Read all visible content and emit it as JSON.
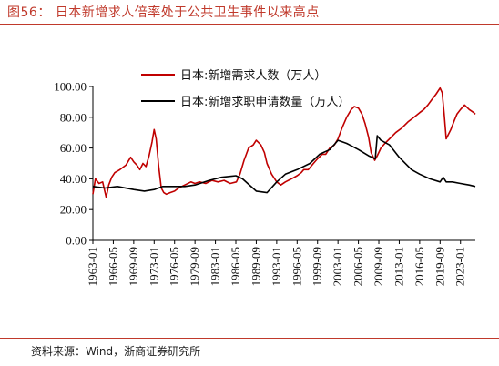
{
  "figure": {
    "title": "图56：  日本新增求人倍率处于公共卫生事件以来高点",
    "source": "资料来源：Wind，浙商证券研究所"
  },
  "colors": {
    "series_red": "#c00000",
    "series_black": "#000000",
    "accent": "#c0392b"
  },
  "chart_data": {
    "type": "line",
    "title": "",
    "xlabel": "",
    "ylabel": "",
    "ylim": [
      0,
      100
    ],
    "y_ticks": [
      "100.00",
      "80.00",
      "60.00",
      "40.00",
      "20.00",
      "0.00"
    ],
    "x_ticks": [
      "1963-01",
      "1966-05",
      "1969-09",
      "1973-01",
      "1976-05",
      "1979-09",
      "1983-01",
      "1986-05",
      "1989-09",
      "1993-01",
      "1996-05",
      "1999-09",
      "2003-01",
      "2006-05",
      "2009-09",
      "2013-01",
      "2016-05",
      "2019-09",
      "2023-01"
    ],
    "x_range": [
      "1963-01",
      "2025-06"
    ],
    "grid": false,
    "legend_position": "top",
    "series": [
      {
        "name": "日本:新增需求人数（万人）",
        "color": "#c00000",
        "x": [
          "1963-01",
          "1963-06",
          "1964-01",
          "1964-08",
          "1965-03",
          "1965-08",
          "1966-02",
          "1966-08",
          "1967-06",
          "1968-06",
          "1969-03",
          "1969-09",
          "1970-03",
          "1970-09",
          "1971-03",
          "1971-09",
          "1972-03",
          "1972-09",
          "1973-01",
          "1973-05",
          "1973-10",
          "1974-03",
          "1974-08",
          "1975-01",
          "1975-08",
          "1976-05",
          "1977-01",
          "1978-01",
          "1979-01",
          "1979-09",
          "1980-06",
          "1981-06",
          "1982-06",
          "1983-06",
          "1984-06",
          "1985-06",
          "1986-06",
          "1987-01",
          "1987-09",
          "1988-06",
          "1989-03",
          "1989-09",
          "1990-06",
          "1991-01",
          "1991-06",
          "1992-03",
          "1993-01",
          "1993-09",
          "1994-06",
          "1995-06",
          "1996-05",
          "1997-01",
          "1997-06",
          "1998-03",
          "1999-01",
          "1999-09",
          "2000-06",
          "2001-01",
          "2001-09",
          "2002-06",
          "2003-01",
          "2003-09",
          "2004-06",
          "2005-03",
          "2005-09",
          "2006-05",
          "2006-12",
          "2007-06",
          "2008-01",
          "2008-06",
          "2009-01",
          "2009-06",
          "2010-01",
          "2010-09",
          "2011-06",
          "2012-06",
          "2013-06",
          "2014-06",
          "2015-06",
          "2016-05",
          "2017-01",
          "2017-09",
          "2018-06",
          "2019-01",
          "2019-09",
          "2020-01",
          "2020-05",
          "2020-09",
          "2021-06",
          "2022-01",
          "2022-06",
          "2023-01",
          "2023-09",
          "2024-06",
          "2025-03",
          "2025-06"
        ],
        "values": [
          30,
          40,
          37,
          38,
          28,
          36,
          41,
          44,
          46,
          49,
          54,
          51,
          49,
          46,
          50,
          48,
          55,
          64,
          72,
          66,
          48,
          34,
          31,
          30,
          31,
          32,
          34,
          36,
          38,
          37,
          38,
          37,
          39,
          38,
          39,
          37,
          38,
          43,
          52,
          60,
          62,
          65,
          62,
          57,
          50,
          43,
          38,
          36,
          38,
          40,
          42,
          44,
          46,
          46,
          50,
          53,
          56,
          56,
          60,
          62,
          66,
          73,
          80,
          85,
          87,
          86,
          82,
          76,
          67,
          57,
          52,
          55,
          60,
          63,
          66,
          70,
          73,
          77,
          80,
          83,
          85,
          88,
          92,
          95,
          99,
          96,
          82,
          66,
          72,
          78,
          82,
          85,
          88,
          85,
          83,
          82
        ]
      },
      {
        "name": "日本:新增求职申请数量（万人）",
        "color": "#000000",
        "x": [
          "1963-01",
          "1965-01",
          "1967-01",
          "1969-09",
          "1971-06",
          "1973-01",
          "1974-06",
          "1976-05",
          "1978-01",
          "1979-09",
          "1982-01",
          "1984-01",
          "1986-05",
          "1987-06",
          "1989-09",
          "1991-06",
          "1993-01",
          "1994-06",
          "1996-05",
          "1998-06",
          "2000-01",
          "2001-09",
          "2003-01",
          "2004-06",
          "2006-05",
          "2008-01",
          "2009-02",
          "2009-06",
          "2010-01",
          "2011-06",
          "2013-01",
          "2015-01",
          "2016-05",
          "2018-01",
          "2019-09",
          "2020-03",
          "2020-09",
          "2021-09",
          "2023-01",
          "2024-06",
          "2025-06"
        ],
        "values": [
          35,
          34,
          35,
          33,
          32,
          33,
          35,
          35,
          35,
          36,
          39,
          41,
          42,
          40,
          32,
          31,
          38,
          43,
          46,
          50,
          56,
          59,
          65,
          63,
          59,
          55,
          53,
          68,
          65,
          62,
          54,
          46,
          43,
          40,
          38,
          41,
          38,
          38,
          37,
          36,
          35
        ]
      }
    ]
  }
}
